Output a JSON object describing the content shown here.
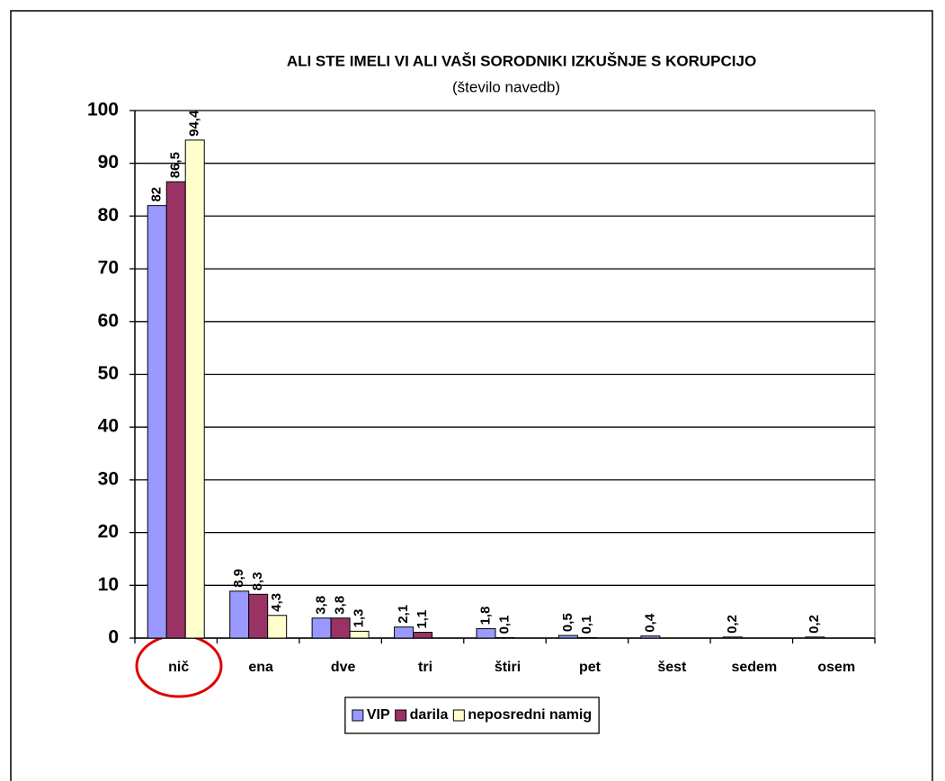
{
  "chart_data": {
    "type": "bar",
    "title": "ALI STE IMELI VI ALI VAŠI SORODNIKI IZKUŠNJE S KORUPCIJO",
    "subtitle": "(število navedb)",
    "categories": [
      "nič",
      "ena",
      "dve",
      "tri",
      "štiri",
      "pet",
      "šest",
      "sedem",
      "osem"
    ],
    "series": [
      {
        "name": "VIP",
        "color": "#9999ff",
        "values": [
          82,
          8.9,
          3.8,
          2.1,
          1.8,
          0.5,
          0.4,
          0.2,
          0.2
        ],
        "value_labels": [
          "82",
          "8,9",
          "3,8",
          "2,1",
          "1,8",
          "0,5",
          "0,4",
          "0,2",
          "0,2"
        ]
      },
      {
        "name": "darila",
        "color": "#993366",
        "values": [
          86.5,
          8.3,
          3.8,
          1.1,
          0.1,
          0.1,
          null,
          null,
          null
        ],
        "value_labels": [
          "86,5",
          "8,3",
          "3,8",
          "1,1",
          "0,1",
          "0,1",
          null,
          null,
          null
        ]
      },
      {
        "name": "neposredni namig",
        "color": "#ffffcc",
        "values": [
          94.4,
          4.3,
          1.3,
          null,
          null,
          null,
          null,
          null,
          null
        ],
        "value_labels": [
          "94,4",
          "4,3",
          "1,3",
          null,
          null,
          null,
          null,
          null,
          null
        ]
      }
    ],
    "ylim": [
      0,
      100
    ],
    "yticks": [
      0,
      10,
      20,
      30,
      40,
      50,
      60,
      70,
      80,
      90,
      100
    ],
    "grid": true,
    "legend": "bottom"
  }
}
